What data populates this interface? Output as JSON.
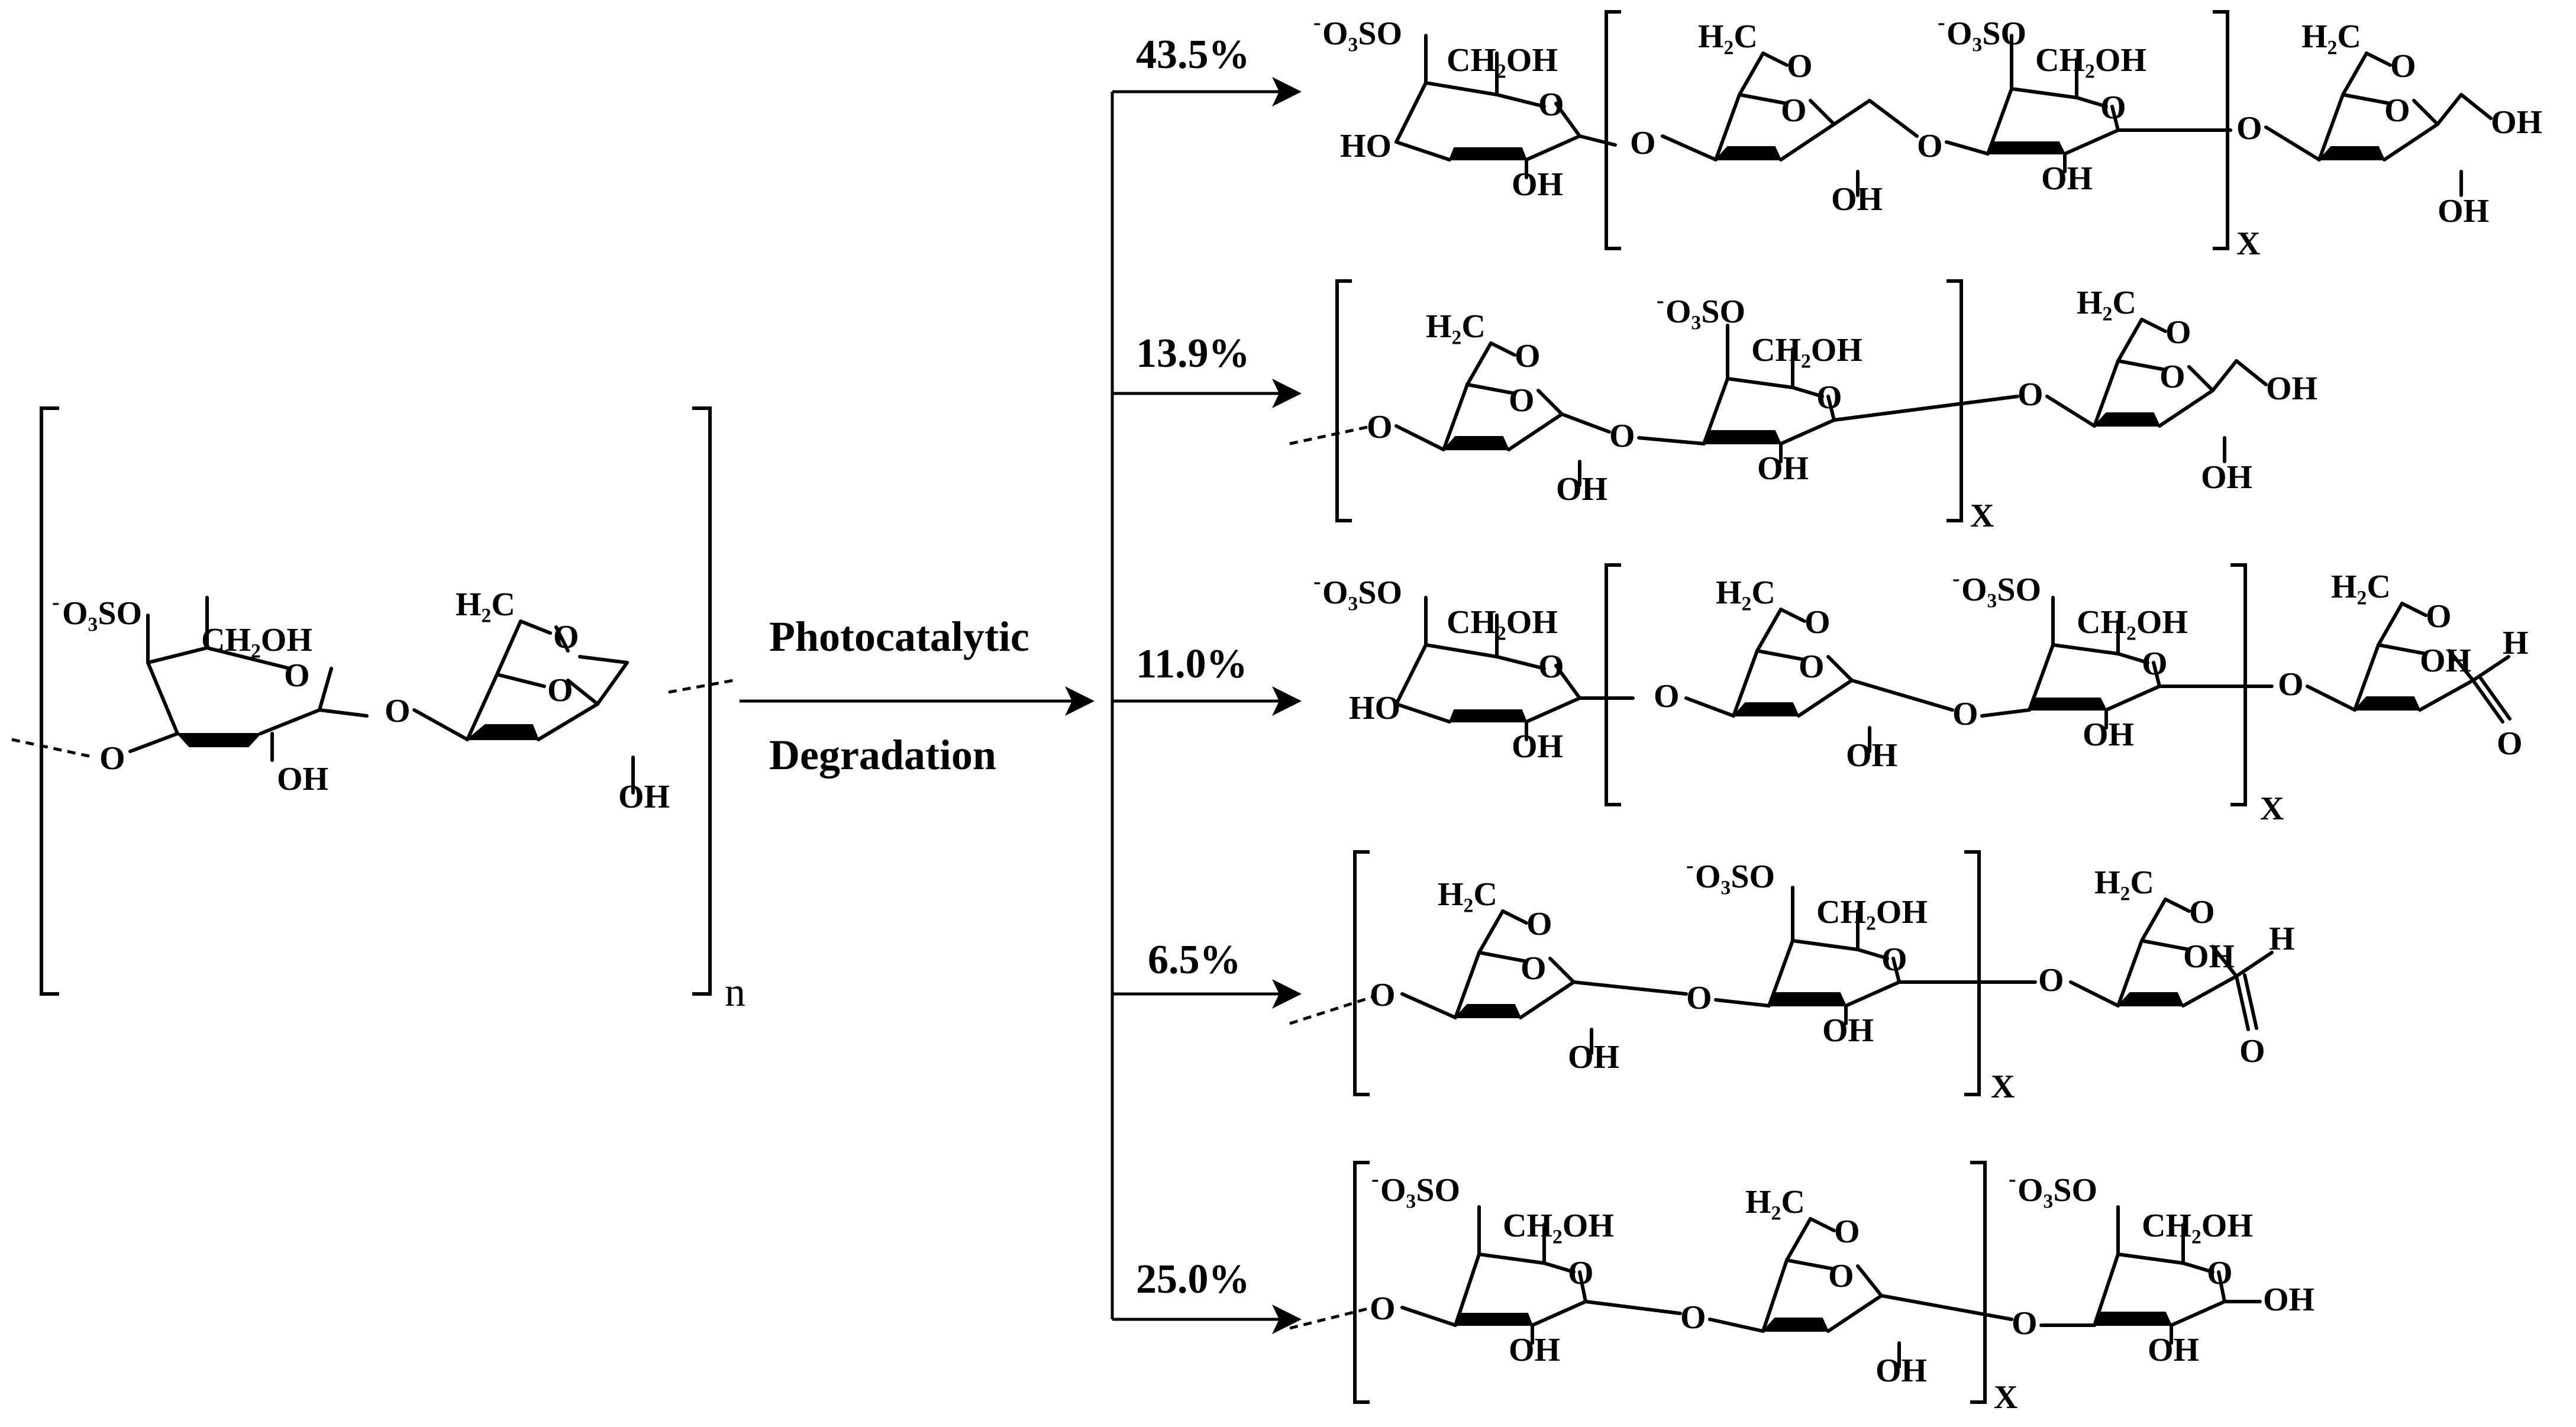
{
  "labels": {
    "sulfate": "O₃SO",
    "sulfate_charge": "-",
    "ch2oh": "CH₂OH",
    "h2c": "H₂C",
    "oh": "OH",
    "ho": "HO",
    "o": "O",
    "h": "H",
    "x": "X",
    "n": "n"
  },
  "reaction": {
    "line1": "Photocatalytic",
    "line2": "Degradation"
  },
  "products": [
    {
      "percent": "43.5%"
    },
    {
      "percent": "13.9%"
    },
    {
      "percent": "11.0%"
    },
    {
      "percent": "6.5%"
    },
    {
      "percent": "25.0%"
    }
  ]
}
